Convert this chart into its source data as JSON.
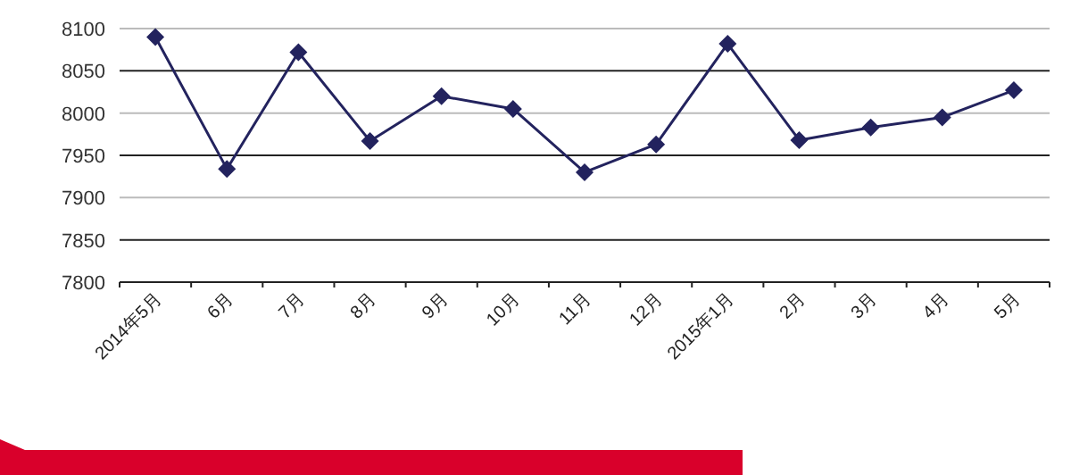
{
  "chart_data": {
    "type": "line",
    "categories": [
      "2014年5月",
      "6月",
      "7月",
      "8月",
      "9月",
      "10月",
      "11月",
      "12月",
      "2015年1月",
      "2月",
      "3月",
      "4月",
      "5月"
    ],
    "series": [
      {
        "color": "#23235e",
        "values": [
          8090,
          7934,
          8072,
          7967,
          8020,
          8005,
          7930,
          7963,
          8082,
          7968,
          7983,
          7995,
          8027
        ]
      }
    ],
    "ylim": [
      7800,
      8100
    ],
    "yticks": [
      7800,
      7850,
      7900,
      7950,
      8000,
      8050,
      8100
    ],
    "grid": "y",
    "marker": "diamond",
    "line_style": "solid"
  }
}
